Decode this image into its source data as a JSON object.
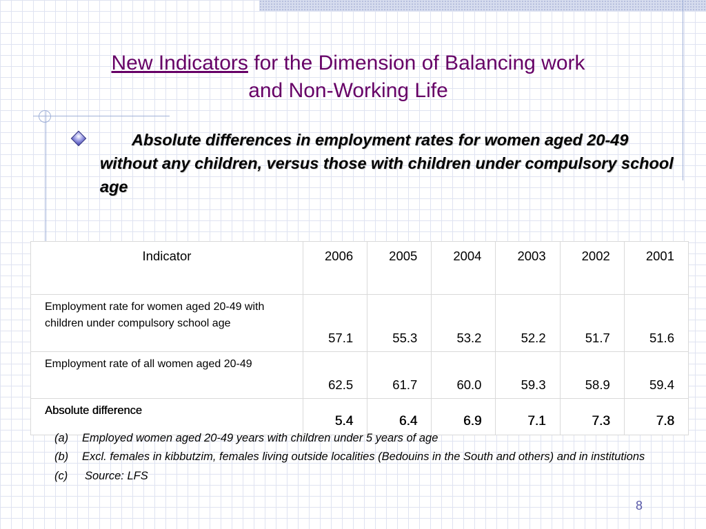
{
  "slide": {
    "title_link": "New Indicators",
    "title_rest": " for the Dimension of Balancing work",
    "title_line2": "and Non-Working Life",
    "bullet": "Absolute differences in employment rates for women aged 20-49 without any children, versus those with children under compulsory school age",
    "page_number": "8",
    "colors": {
      "title": "#660066",
      "page_number": "#5a5aa8",
      "grid": "#dfe3f1",
      "bullet": "#3c3fb0"
    }
  },
  "table": {
    "header_label": "Indicator",
    "years": [
      "2006",
      "2005",
      "2004",
      "2003",
      "2002",
      "2001"
    ],
    "rows": [
      {
        "label": "Employment rate for women aged 20-49 with children under compulsory school age",
        "values": [
          "57.1",
          "55.3",
          "53.2",
          "52.2",
          "51.7",
          "51.6"
        ]
      },
      {
        "label": "Employment rate of all women aged 20-49",
        "values": [
          "62.5",
          "61.7",
          "60.0",
          "59.3",
          "58.9",
          "59.4"
        ]
      },
      {
        "label": "Absolute difference",
        "values": [
          "5.4",
          "6.4",
          "6.9",
          "7.1",
          "7.3",
          "7.8"
        ]
      }
    ]
  },
  "notes": [
    {
      "letter": "(a)",
      "text": "Employed women aged 20-49 years with children under 5 years of age"
    },
    {
      "letter": "(b)",
      "text": "Excl. females in kibbutzim, females living outside localities (Bedouins in the South and others) and in institutions"
    },
    {
      "letter": "(c)",
      "text": "Source: LFS"
    }
  ]
}
